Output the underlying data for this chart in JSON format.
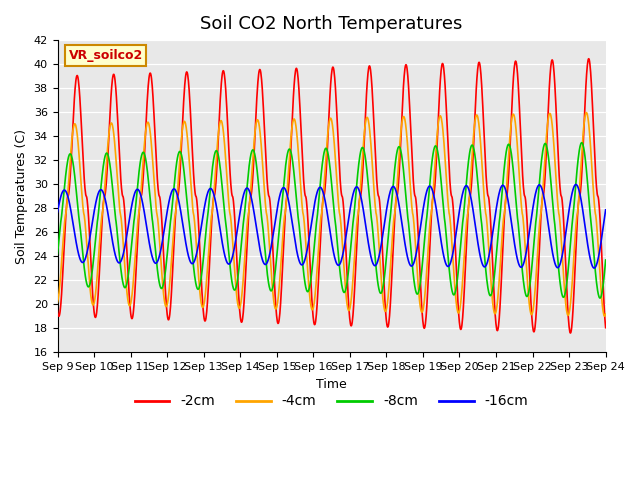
{
  "title": "Soil CO2 North Temperatures",
  "xlabel": "Time",
  "ylabel": "Soil Temperatures (C)",
  "ylim": [
    16,
    42
  ],
  "xlim": [
    0,
    15
  ],
  "x_tick_labels": [
    "Sep 9",
    "Sep 10",
    "Sep 11",
    "Sep 12",
    "Sep 13",
    "Sep 14",
    "Sep 15",
    "Sep 16",
    "Sep 17",
    "Sep 18",
    "Sep 19",
    "Sep 20",
    "Sep 21",
    "Sep 22",
    "Sep 23",
    "Sep 24"
  ],
  "series_labels": [
    "-2cm",
    "-4cm",
    "-8cm",
    "-16cm"
  ],
  "series_colors": [
    "#ff0000",
    "#ffa500",
    "#00cc00",
    "#0000ff"
  ],
  "annotation_text": "VR_soilco2",
  "annotation_color": "#cc0000",
  "annotation_bg": "#ffffcc",
  "annotation_border": "#cc8800",
  "bg_color": "#e8e8e8",
  "title_fontsize": 13,
  "axis_fontsize": 9,
  "tick_fontsize": 8,
  "legend_fontsize": 10
}
